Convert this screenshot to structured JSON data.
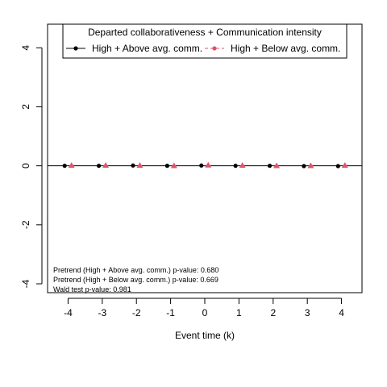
{
  "chart_data": {
    "type": "scatter",
    "title": "",
    "xlabel": "Event time (k)",
    "ylabel": "",
    "x": [
      -4,
      -3,
      -2,
      -1,
      0,
      1,
      2,
      3,
      4
    ],
    "xlim": [
      -4.6,
      4.6
    ],
    "ylim": [
      -4.3,
      4.8
    ],
    "x_ticks": [
      -4,
      -3,
      -2,
      -1,
      0,
      1,
      2,
      3,
      4
    ],
    "y_ticks": [
      -4,
      -2,
      0,
      2,
      4
    ],
    "grid": false,
    "reference_line_y": 0,
    "legend": {
      "title": "Departed collaborativeness + Communication intensity",
      "placement": "top"
    },
    "series": [
      {
        "name": "High + Above avg. comm.",
        "x_offset": -0.1,
        "values": [
          0.0,
          0.0,
          0.01,
          0.0,
          0.01,
          0.0,
          0.0,
          -0.01,
          -0.01
        ],
        "color": "#000000",
        "marker": "circle",
        "line": "solid"
      },
      {
        "name": "High + Below avg. comm.",
        "x_offset": 0.1,
        "values": [
          0.01,
          0.01,
          0.01,
          0.0,
          0.02,
          0.01,
          0.0,
          0.0,
          0.01
        ],
        "color": "#DF536B",
        "marker": "triangle",
        "line": "dashed"
      }
    ],
    "annotations": [
      "Pretrend (High + Above avg. comm.) p-value: 0.680",
      "Pretrend (High + Below avg. comm.) p-value: 0.669",
      "Wald test p-value: 0.981"
    ]
  }
}
